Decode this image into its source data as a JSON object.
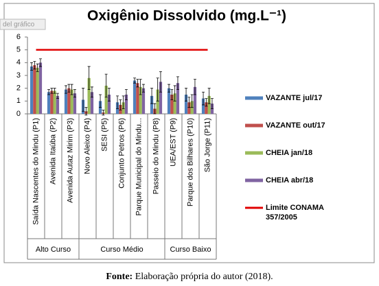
{
  "chart_data": {
    "type": "bar",
    "title": "Oxigênio Dissolvido (mg.L⁻¹)",
    "tooltip": "del gráfico",
    "categories": [
      "Saída Nascentes do Mindu (P1)",
      "Avenida Itaúba (P2)",
      "Avenida Autaz Mirim (P3)",
      "Novo Aleixo (P4)",
      "SESI (P5)",
      "Conjunto Petros (P6)",
      "Parque Municipal do Mindu...",
      "Passeio do Mindu (P8)",
      "UEA/EST (P9)",
      "Parque dos Bilhares (P10)",
      "São Jorge (P11)"
    ],
    "groups": [
      {
        "label": "Alto Curso",
        "span": 3
      },
      {
        "label": "Curso Médio",
        "span": 5
      },
      {
        "label": "Curso Baixo",
        "span": 3
      }
    ],
    "series": [
      {
        "name": "VAZANTE jul/17",
        "color": "#4f81bd",
        "values": [
          3.7,
          1.7,
          1.9,
          1.1,
          1.0,
          0.9,
          2.6,
          1.4,
          2.0,
          1.5,
          1.2
        ],
        "errors": [
          0.3,
          0.2,
          0.3,
          0.9,
          0.5,
          0.5,
          0.2,
          0.6,
          0.3,
          0.5,
          0.5
        ]
      },
      {
        "name": "VAZANTE out/17",
        "color": "#c0504d",
        "values": [
          3.8,
          1.8,
          2.0,
          0.2,
          0.1,
          0.7,
          2.4,
          0.4,
          1.5,
          0.9,
          0.9
        ],
        "errors": [
          0.3,
          0.2,
          0.3,
          0.3,
          0.2,
          0.4,
          0.3,
          0.4,
          0.4,
          0.4,
          0.3
        ]
      },
      {
        "name": "CHEIA jan/18",
        "color": "#9bbb59",
        "values": [
          3.6,
          1.8,
          1.9,
          2.8,
          2.2,
          0.9,
          2.1,
          1.9,
          1.6,
          1.0,
          1.4
        ],
        "errors": [
          0.3,
          0.2,
          0.4,
          0.9,
          0.9,
          0.5,
          0.6,
          0.9,
          0.6,
          0.5,
          0.6
        ]
      },
      {
        "name": "CHEIA abr/18",
        "color": "#8064a2",
        "values": [
          4.0,
          1.4,
          1.6,
          1.7,
          1.5,
          1.5,
          2.0,
          2.5,
          2.4,
          2.1,
          0.8
        ],
        "errors": [
          0.3,
          0.2,
          0.3,
          0.4,
          0.5,
          0.4,
          0.3,
          0.8,
          0.5,
          0.6,
          0.4
        ]
      },
      {
        "name": "Limite CONAMA 357/2005",
        "type": "line",
        "color": "#e00000",
        "values": [
          5,
          5,
          5,
          5,
          5,
          5,
          5,
          5,
          5,
          5,
          5
        ]
      }
    ],
    "ylim": [
      0,
      6
    ],
    "yticks": [
      0,
      1,
      2,
      3,
      4,
      5,
      6
    ],
    "caption_bold": "Fonte:",
    "caption": "Elaboração própria do autor (2018)."
  }
}
